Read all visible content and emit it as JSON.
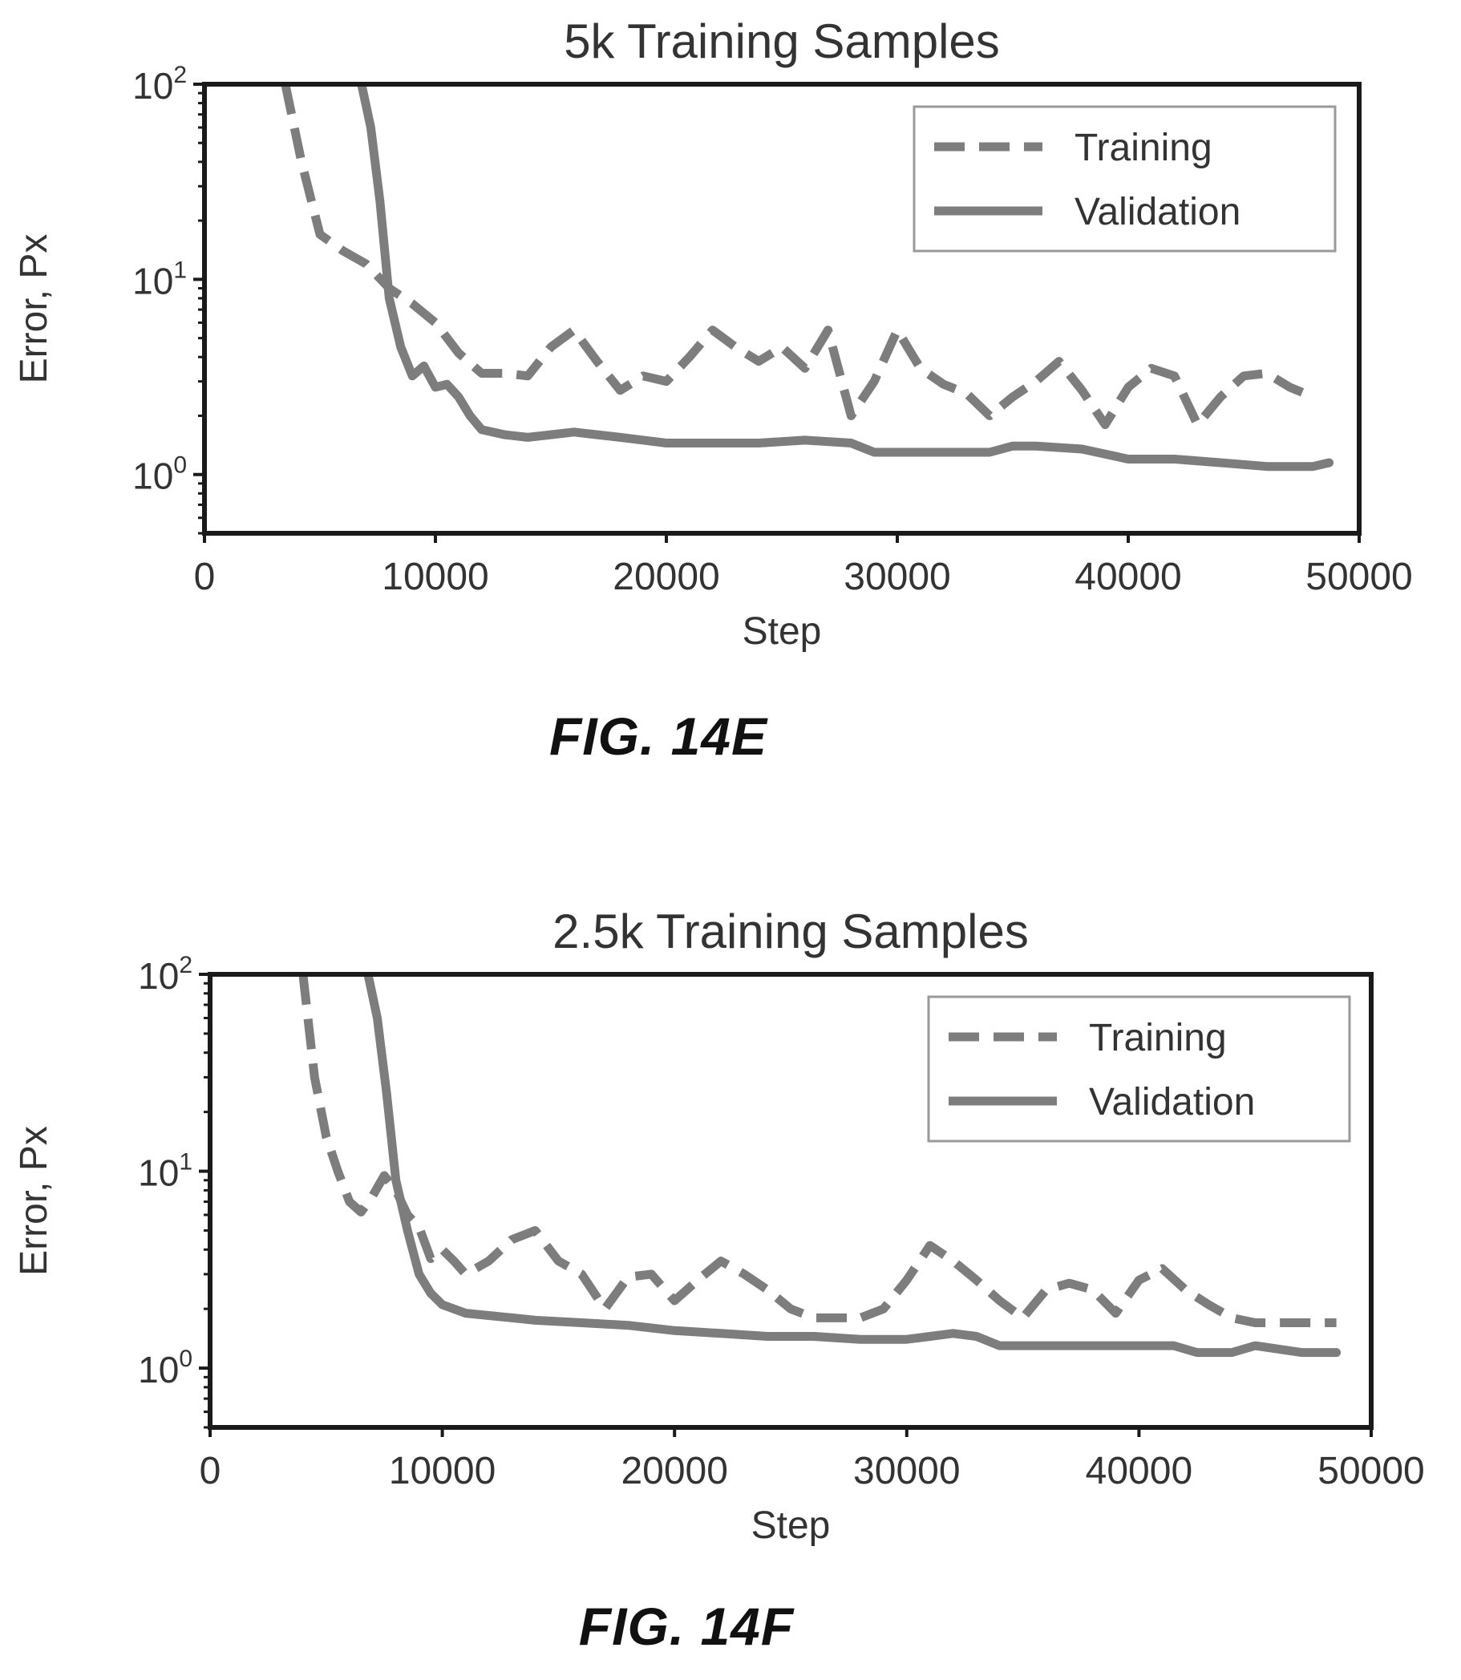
{
  "figures": [
    {
      "caption": "FIG. 14E",
      "chart_data": {
        "type": "line",
        "title": "5k Training Samples",
        "xlabel": "Step",
        "ylabel": "Error, Px",
        "xlim": [
          0,
          50000
        ],
        "ylim": [
          0.5,
          100
        ],
        "yscale": "log",
        "xticks": [
          "0",
          "10000",
          "20000",
          "30000",
          "40000",
          "50000"
        ],
        "yticks": [
          {
            "base": "10",
            "exp": "2",
            "value": 100
          },
          {
            "base": "10",
            "exp": "1",
            "value": 10
          },
          {
            "base": "10",
            "exp": "0",
            "value": 1
          }
        ],
        "legend_position": "top-right",
        "series": [
          {
            "name": "Training",
            "style": "dashed",
            "x": [
              3500,
              4200,
              5000,
              6000,
              7000,
              8000,
              9000,
              10000,
              11000,
              12000,
              13000,
              14000,
              15000,
              16000,
              17000,
              18000,
              19000,
              20000,
              21000,
              22000,
              23000,
              24000,
              25000,
              26000,
              27000,
              28000,
              29000,
              30000,
              31000,
              32000,
              33000,
              34000,
              35000,
              36000,
              37000,
              38000,
              39000,
              40000,
              41000,
              42000,
              43000,
              44000,
              45000,
              46000,
              47000,
              48000
            ],
            "y": [
              100,
              40,
              17,
              14,
              12,
              9,
              7.5,
              6,
              4.2,
              3.3,
              3.3,
              3.2,
              4.5,
              5.5,
              3.8,
              2.7,
              3.2,
              3.0,
              4.0,
              5.5,
              4.5,
              3.8,
              4.5,
              3.5,
              5.5,
              2.0,
              3.0,
              5.5,
              3.5,
              2.9,
              2.6,
              2.0,
              2.5,
              3.0,
              3.8,
              2.7,
              1.8,
              2.8,
              3.5,
              3.2,
              1.8,
              2.5,
              3.2,
              3.3,
              2.8,
              2.5
            ]
          },
          {
            "name": "Validation",
            "style": "solid",
            "x": [
              6800,
              7200,
              7600,
              8000,
              8500,
              9000,
              9500,
              10000,
              10500,
              11000,
              11500,
              12000,
              13000,
              14000,
              15000,
              16000,
              17000,
              18000,
              19000,
              20000,
              22000,
              24000,
              26000,
              28000,
              29000,
              30000,
              32000,
              34000,
              35000,
              36000,
              38000,
              40000,
              42000,
              44000,
              46000,
              48000,
              48700
            ],
            "y": [
              100,
              60,
              25,
              8,
              4.5,
              3.2,
              3.6,
              2.8,
              2.9,
              2.5,
              2.0,
              1.7,
              1.6,
              1.55,
              1.6,
              1.65,
              1.6,
              1.55,
              1.5,
              1.45,
              1.45,
              1.45,
              1.5,
              1.45,
              1.3,
              1.3,
              1.3,
              1.3,
              1.4,
              1.4,
              1.35,
              1.2,
              1.2,
              1.15,
              1.1,
              1.1,
              1.15
            ]
          }
        ]
      }
    },
    {
      "caption": "FIG. 14F",
      "chart_data": {
        "type": "line",
        "title": "2.5k Training Samples",
        "xlabel": "Step",
        "ylabel": "Error, Px",
        "xlim": [
          0,
          50000
        ],
        "ylim": [
          0.5,
          100
        ],
        "yscale": "log",
        "xticks": [
          "0",
          "10000",
          "20000",
          "30000",
          "40000",
          "50000"
        ],
        "yticks": [
          {
            "base": "10",
            "exp": "2",
            "value": 100
          },
          {
            "base": "10",
            "exp": "1",
            "value": 10
          },
          {
            "base": "10",
            "exp": "0",
            "value": 1
          }
        ],
        "legend_position": "top-right",
        "series": [
          {
            "name": "Training",
            "style": "dashed",
            "x": [
              4000,
              4500,
              5000,
              5500,
              6000,
              6500,
              7000,
              7500,
              8000,
              8500,
              9000,
              9500,
              10000,
              10500,
              11000,
              12000,
              13000,
              14000,
              15000,
              16000,
              17000,
              18000,
              19000,
              20000,
              21000,
              22000,
              23000,
              24000,
              25000,
              26000,
              27000,
              28000,
              29000,
              30000,
              31000,
              32000,
              33000,
              34000,
              35000,
              36000,
              37000,
              38000,
              39000,
              40000,
              41000,
              42000,
              43000,
              44000,
              45000,
              46000,
              47000,
              48500
            ],
            "y": [
              100,
              30,
              15,
              10,
              7,
              6.2,
              7.5,
              9.5,
              8,
              6,
              5.2,
              3.6,
              4.0,
              3.5,
              3.0,
              3.5,
              4.5,
              5,
              3.5,
              3.0,
              2.0,
              2.9,
              3.0,
              2.2,
              2.8,
              3.5,
              3.0,
              2.5,
              2.0,
              1.8,
              1.8,
              1.8,
              2.0,
              2.8,
              4.2,
              3.5,
              2.8,
              2.2,
              1.8,
              2.5,
              2.7,
              2.5,
              1.9,
              2.8,
              3.2,
              2.5,
              2.1,
              1.8,
              1.7,
              1.7,
              1.7,
              1.7
            ]
          },
          {
            "name": "Validation",
            "style": "solid",
            "x": [
              6800,
              7200,
              7600,
              8000,
              8500,
              9000,
              9500,
              10000,
              11000,
              12000,
              13000,
              14000,
              16000,
              18000,
              20000,
              22000,
              24000,
              26000,
              28000,
              30000,
              31000,
              32000,
              33000,
              34000,
              36000,
              38000,
              40000,
              41500,
              42500,
              44000,
              45000,
              46000,
              47000,
              48500
            ],
            "y": [
              100,
              60,
              25,
              9,
              5,
              3.0,
              2.4,
              2.1,
              1.9,
              1.85,
              1.8,
              1.75,
              1.7,
              1.65,
              1.55,
              1.5,
              1.45,
              1.45,
              1.4,
              1.4,
              1.45,
              1.5,
              1.45,
              1.3,
              1.3,
              1.3,
              1.3,
              1.3,
              1.2,
              1.2,
              1.3,
              1.25,
              1.2,
              1.2
            ]
          }
        ]
      }
    }
  ]
}
